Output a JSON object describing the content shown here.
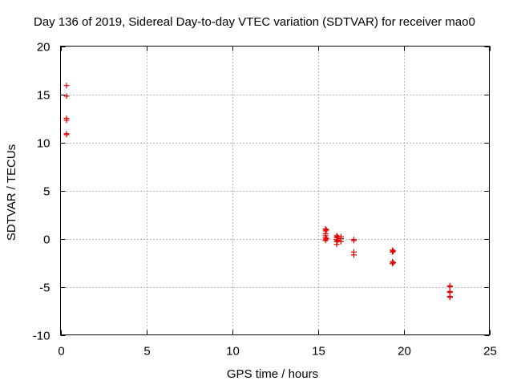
{
  "chart_data": {
    "type": "scatter",
    "title": "Day 136 of 2019, Sidereal Day-to-day VTEC variation (SDTVAR) for receiver mao0",
    "xlabel": "GPS time / hours",
    "ylabel": "SDTVAR / TECUs",
    "xlim": [
      0,
      25
    ],
    "ylim": [
      -10,
      20
    ],
    "xticks": [
      0,
      5,
      10,
      15,
      20,
      25
    ],
    "yticks": [
      -10,
      -5,
      0,
      5,
      10,
      15,
      20
    ],
    "xtick_labels": [
      "0",
      "5",
      "10",
      "15",
      "20",
      "25"
    ],
    "ytick_labels": [
      "-10",
      "-5",
      "0",
      "5",
      "10",
      "15",
      "20"
    ],
    "grid": true,
    "marker": "+",
    "color": "#e00000",
    "series": [
      {
        "name": "mao0",
        "points": [
          [
            0.35,
            15.9
          ],
          [
            0.35,
            14.8
          ],
          [
            0.35,
            12.5
          ],
          [
            0.35,
            12.3
          ],
          [
            0.35,
            10.9
          ],
          [
            0.35,
            10.8
          ],
          [
            15.45,
            1.0
          ],
          [
            15.45,
            0.8
          ],
          [
            15.45,
            0.5
          ],
          [
            15.45,
            0.3
          ],
          [
            15.45,
            0.1
          ],
          [
            15.45,
            -0.1
          ],
          [
            15.45,
            -0.2
          ],
          [
            15.5,
            0.9
          ],
          [
            15.5,
            0.0
          ],
          [
            16.1,
            0.3
          ],
          [
            16.1,
            0.1
          ],
          [
            16.1,
            -0.1
          ],
          [
            16.1,
            -0.3
          ],
          [
            16.1,
            -0.6
          ],
          [
            16.15,
            0.2
          ],
          [
            16.15,
            -0.2
          ],
          [
            16.35,
            0.2
          ],
          [
            16.35,
            0.0
          ],
          [
            16.35,
            -0.3
          ],
          [
            17.1,
            -0.1
          ],
          [
            17.1,
            -0.2
          ],
          [
            17.1,
            -1.4
          ],
          [
            17.1,
            -1.7
          ],
          [
            19.35,
            -1.2
          ],
          [
            19.35,
            -1.4
          ],
          [
            19.35,
            -2.4
          ],
          [
            19.35,
            -2.6
          ],
          [
            19.4,
            -1.3
          ],
          [
            19.4,
            -2.5
          ],
          [
            22.7,
            -4.9
          ],
          [
            22.7,
            -5.0
          ],
          [
            22.7,
            -5.5
          ],
          [
            22.7,
            -5.6
          ],
          [
            22.7,
            -6.0
          ],
          [
            22.7,
            -6.1
          ]
        ]
      }
    ]
  }
}
